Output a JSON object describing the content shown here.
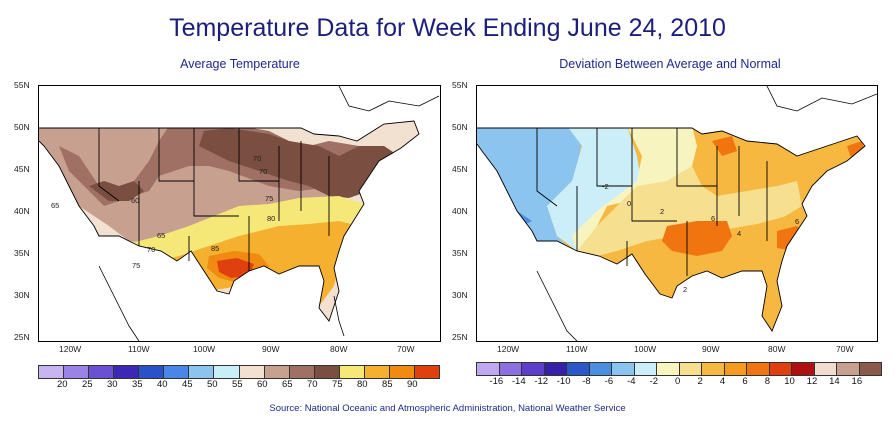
{
  "title": "Temperature Data for Week Ending June 24, 2010",
  "left_panel": {
    "title": "Average Temperature",
    "lat_labels": [
      "55N",
      "50N",
      "45N",
      "40N",
      "35N",
      "30N",
      "25N"
    ],
    "lon_labels": [
      "120W",
      "110W",
      "100W",
      "90W",
      "80W",
      "70W"
    ],
    "contour_labels": [
      "70",
      "70",
      "75",
      "80",
      "60",
      "65",
      "65",
      "70",
      "75",
      "85"
    ],
    "legend_values": [
      "20",
      "25",
      "30",
      "35",
      "40",
      "45",
      "50",
      "55",
      "60",
      "65",
      "70",
      "75",
      "80",
      "85",
      "90"
    ],
    "legend_colors": [
      "#c8b4f0",
      "#9a82e6",
      "#6a50d2",
      "#3c28b4",
      "#2a52c8",
      "#4a86e8",
      "#8cc4f0",
      "#c8eef8",
      "#f2e0d0",
      "#c8a090",
      "#a07064",
      "#7a4e40",
      "#f6e878",
      "#f6b030",
      "#f08a10",
      "#e04010"
    ]
  },
  "right_panel": {
    "title": "Deviation Between Average and Normal",
    "lat_labels": [
      "55N",
      "50N",
      "45N",
      "40N",
      "35N",
      "30N",
      "25N"
    ],
    "lon_labels": [
      "120W",
      "110W",
      "100W",
      "90W",
      "80W",
      "70W"
    ],
    "contour_labels": [
      "-2",
      "0",
      "2",
      "6",
      "6",
      "4",
      "2"
    ],
    "legend_values": [
      "-16",
      "-14",
      "-12",
      "-10",
      "-8",
      "-6",
      "-4",
      "-2",
      "0",
      "2",
      "4",
      "6",
      "8",
      "10",
      "12",
      "14",
      "16"
    ],
    "legend_colors": [
      "#c0a8f0",
      "#8c70e0",
      "#5c40cc",
      "#3620a8",
      "#2a58c8",
      "#4a8ee0",
      "#8cc4f0",
      "#cceef8",
      "#f8f4c0",
      "#f6e090",
      "#f6b840",
      "#f49a20",
      "#f07410",
      "#e04010",
      "#b01010",
      "#f2dcd0",
      "#c8a090",
      "#8a5a4c"
    ]
  },
  "source": "Source:  National Oceanic and Atmospheric Administration, National Weather Service"
}
